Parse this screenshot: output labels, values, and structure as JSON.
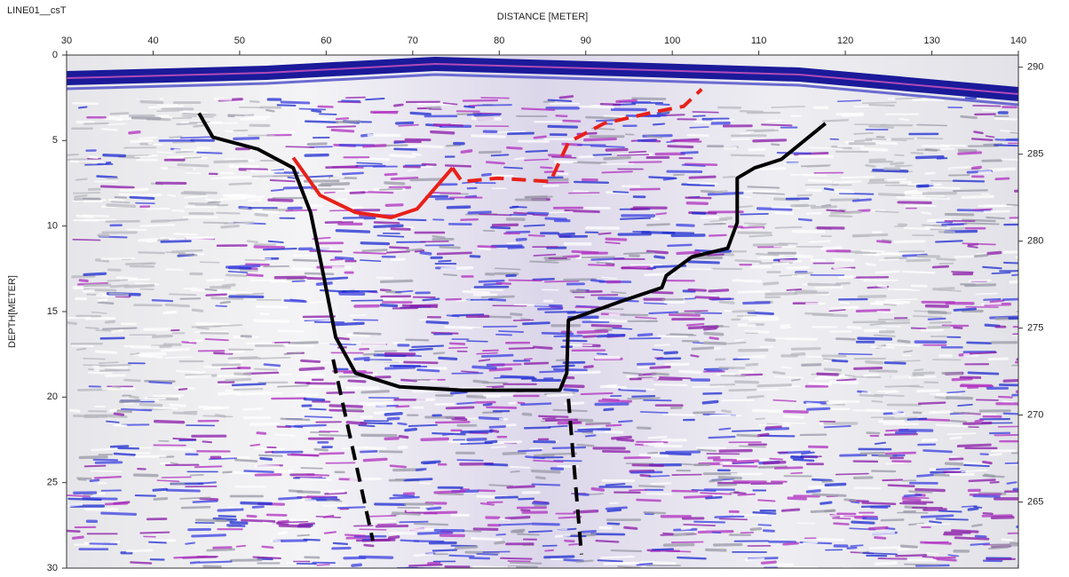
{
  "chart_data": {
    "type": "radargram",
    "title": "LINE01__csT",
    "x_label": "DISTANCE [METER]",
    "y_label": "DEPTH[METER]",
    "xlim": [
      30,
      140
    ],
    "xticks": [
      30,
      40,
      50,
      60,
      70,
      80,
      90,
      100,
      110,
      120,
      130,
      140
    ],
    "ylim": [
      0,
      30
    ],
    "yticks": [
      0,
      5,
      10,
      15,
      20,
      25,
      30
    ],
    "y2lim": [
      290.7,
      261.2
    ],
    "y2ticks": [
      290,
      285,
      280,
      275,
      270,
      265
    ],
    "series": [
      {
        "color": "#000000",
        "style": "solid",
        "x": [
          45.3,
          46.9,
          52.1,
          56.2,
          58.2,
          59.5,
          61.1,
          63.4,
          68.5,
          75.7,
          87.0,
          87.8,
          88.0,
          94.1,
          98.8,
          99.3,
          102.3,
          106.4,
          107.5,
          107.5,
          109.5,
          112.6,
          117.7
        ],
        "values": [
          3.4,
          4.8,
          5.5,
          6.6,
          9.2,
          12.4,
          16.5,
          18.6,
          19.4,
          19.6,
          19.6,
          18.6,
          15.5,
          14.4,
          13.6,
          12.9,
          11.8,
          11.3,
          9.8,
          7.2,
          6.6,
          6.1,
          4.0
        ]
      },
      {
        "color": "#e8201a",
        "style": "solid",
        "x": [
          56.2,
          59.3,
          63.4,
          67.5,
          70.5,
          74.6
        ],
        "values": [
          6.0,
          8.2,
          9.2,
          9.5,
          9.0,
          6.6
        ]
      },
      {
        "color": "#e8201a",
        "style": "dashed",
        "x": [
          74.6,
          75.7,
          79.8,
          85.9,
          88.0,
          92.1,
          98.2,
          101.3,
          103.4
        ],
        "values": [
          6.6,
          7.4,
          7.2,
          7.4,
          5.1,
          4.0,
          3.3,
          3.0,
          2.0
        ]
      },
      {
        "color": "#000000",
        "style": "dashed",
        "x": [
          60.8,
          65.4
        ],
        "values": [
          17.8,
          28.4
        ]
      },
      {
        "color": "#000000",
        "style": "dashed",
        "x": [
          88.0,
          89.5
        ],
        "values": [
          20.1,
          29.2
        ]
      }
    ]
  }
}
